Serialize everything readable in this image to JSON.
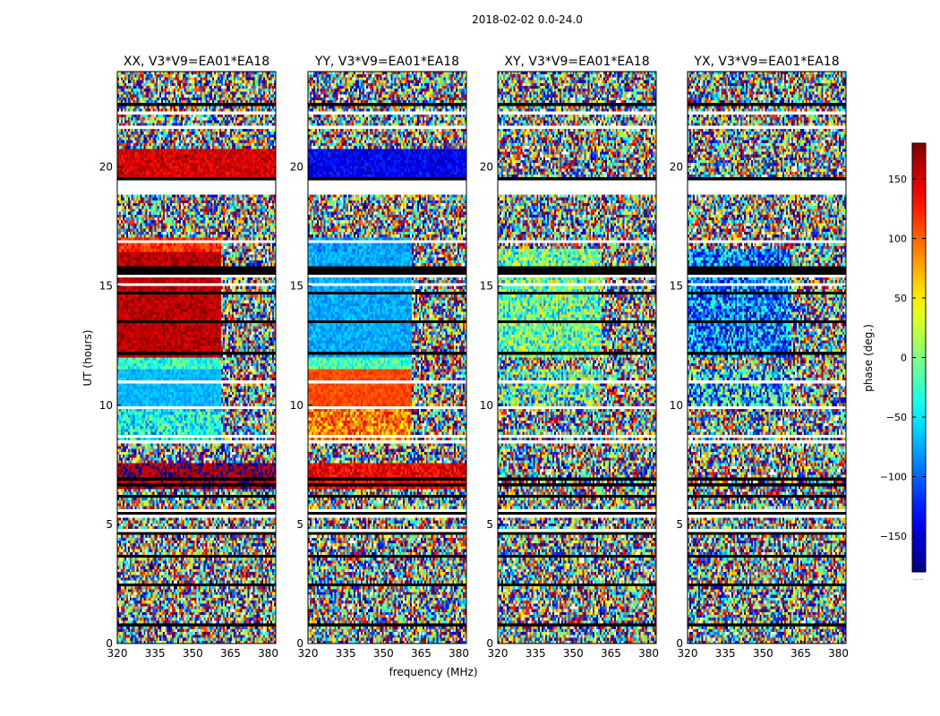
{
  "chart_data": {
    "type": "heatmap",
    "title": "2018-02-02 0.0-24.0",
    "xlabel": "frequency (MHz)",
    "ylabel": "UT (hours)",
    "xlim": [
      320,
      383
    ],
    "ylim": [
      0,
      24
    ],
    "xticks": [
      320,
      335,
      350,
      365,
      380
    ],
    "xtick_labels": [
      "320",
      "335",
      "350",
      "365",
      "380"
    ],
    "yticks": [
      0,
      5,
      10,
      15,
      20
    ],
    "ytick_labels": [
      "0",
      "5",
      "10",
      "15",
      "20"
    ],
    "colorbar": {
      "label": "phase (deg.)",
      "range": [
        -180,
        180
      ],
      "ticks": [
        150,
        100,
        50,
        0,
        -50,
        -100,
        -150
      ],
      "tick_labels": [
        "150",
        "100",
        "50",
        "0",
        "−50",
        "−100",
        "−150"
      ],
      "colormap": "jet",
      "footer": "....."
    },
    "panels": [
      {
        "name": "XX, V3*V9=EA01*EA18",
        "coherent_blocks": [
          {
            "ut": [
              19.3,
              20.7
            ],
            "freq": [
              320,
              383
            ],
            "phase": 150,
            "spread": 25
          },
          {
            "ut": [
              16.5,
              17.0
            ],
            "freq": [
              320,
              361
            ],
            "phase": 120,
            "spread": 25
          },
          {
            "ut": [
              12.0,
              16.5
            ],
            "freq": [
              320,
              361
            ],
            "phase": 160,
            "spread": 20
          },
          {
            "ut": [
              11.5,
              12.0
            ],
            "freq": [
              320,
              361
            ],
            "phase": -30,
            "spread": 40
          },
          {
            "ut": [
              9.8,
              11.5
            ],
            "freq": [
              320,
              361
            ],
            "phase": -70,
            "spread": 15
          },
          {
            "ut": [
              8.5,
              9.8
            ],
            "freq": [
              320,
              361
            ],
            "phase": -40,
            "spread": 60
          },
          {
            "ut": [
              6.5,
              7.5
            ],
            "freq": [
              320,
              383
            ],
            "phase": 170,
            "spread": 30
          }
        ]
      },
      {
        "name": "YY, V3*V9=EA01*EA18",
        "coherent_blocks": [
          {
            "ut": [
              19.3,
              20.7
            ],
            "freq": [
              320,
              383
            ],
            "phase": -140,
            "spread": 25
          },
          {
            "ut": [
              16.5,
              17.0
            ],
            "freq": [
              320,
              361
            ],
            "phase": -80,
            "spread": 25
          },
          {
            "ut": [
              12.0,
              16.5
            ],
            "freq": [
              320,
              361
            ],
            "phase": -75,
            "spread": 20
          },
          {
            "ut": [
              11.5,
              12.0
            ],
            "freq": [
              320,
              361
            ],
            "phase": -20,
            "spread": 40
          },
          {
            "ut": [
              9.8,
              11.5
            ],
            "freq": [
              320,
              361
            ],
            "phase": 110,
            "spread": 15
          },
          {
            "ut": [
              8.5,
              9.8
            ],
            "freq": [
              320,
              361
            ],
            "phase": 90,
            "spread": 50
          },
          {
            "ut": [
              6.5,
              7.5
            ],
            "freq": [
              320,
              383
            ],
            "phase": 140,
            "spread": 30
          }
        ]
      },
      {
        "name": "XY, V3*V9=EA01*EA18",
        "coherent_blocks": [
          {
            "ut": [
              12.0,
              16.5
            ],
            "freq": [
              320,
              361
            ],
            "phase": -10,
            "spread": 80
          },
          {
            "ut": [
              9.8,
              11.5
            ],
            "freq": [
              320,
              361
            ],
            "phase": -20,
            "spread": 110
          }
        ]
      },
      {
        "name": "YX, V3*V9=EA01*EA18",
        "coherent_blocks": [
          {
            "ut": [
              12.0,
              16.5
            ],
            "freq": [
              320,
              361
            ],
            "phase": -90,
            "spread": 80
          },
          {
            "ut": [
              9.8,
              11.5
            ],
            "freq": [
              320,
              361
            ],
            "phase": -60,
            "spread": 110
          }
        ]
      }
    ]
  }
}
